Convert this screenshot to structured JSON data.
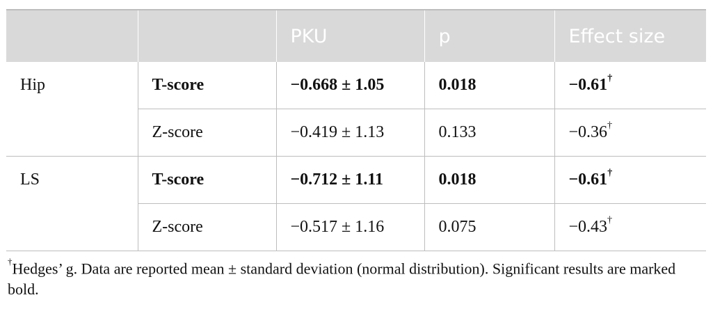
{
  "table": {
    "headers": [
      "",
      "",
      "PKU",
      "p",
      "Effect size"
    ],
    "groups": [
      {
        "site": "Hip",
        "rows": [
          {
            "measure": "T-score",
            "pku": "−0.668 ± 1.05",
            "p": "0.018",
            "effect": "−0.61",
            "mark": "†",
            "bold": true
          },
          {
            "measure": "Z-score",
            "pku": "−0.419 ± 1.13",
            "p": "0.133",
            "effect": "−0.36",
            "mark": "†",
            "bold": false
          }
        ]
      },
      {
        "site": "LS",
        "rows": [
          {
            "measure": "T-score",
            "pku": "−0.712 ± 1.11",
            "p": "0.018",
            "effect": "−0.61",
            "mark": "†",
            "bold": true
          },
          {
            "measure": "Z-score",
            "pku": "−0.517 ± 1.16",
            "p": "0.075",
            "effect": "−0.43",
            "mark": "†",
            "bold": false
          }
        ]
      }
    ]
  },
  "footnote": {
    "mark": "†",
    "text": "Hedges’ g. Data are reported mean ± standard deviation (normal distribution). Significant results are marked bold."
  }
}
